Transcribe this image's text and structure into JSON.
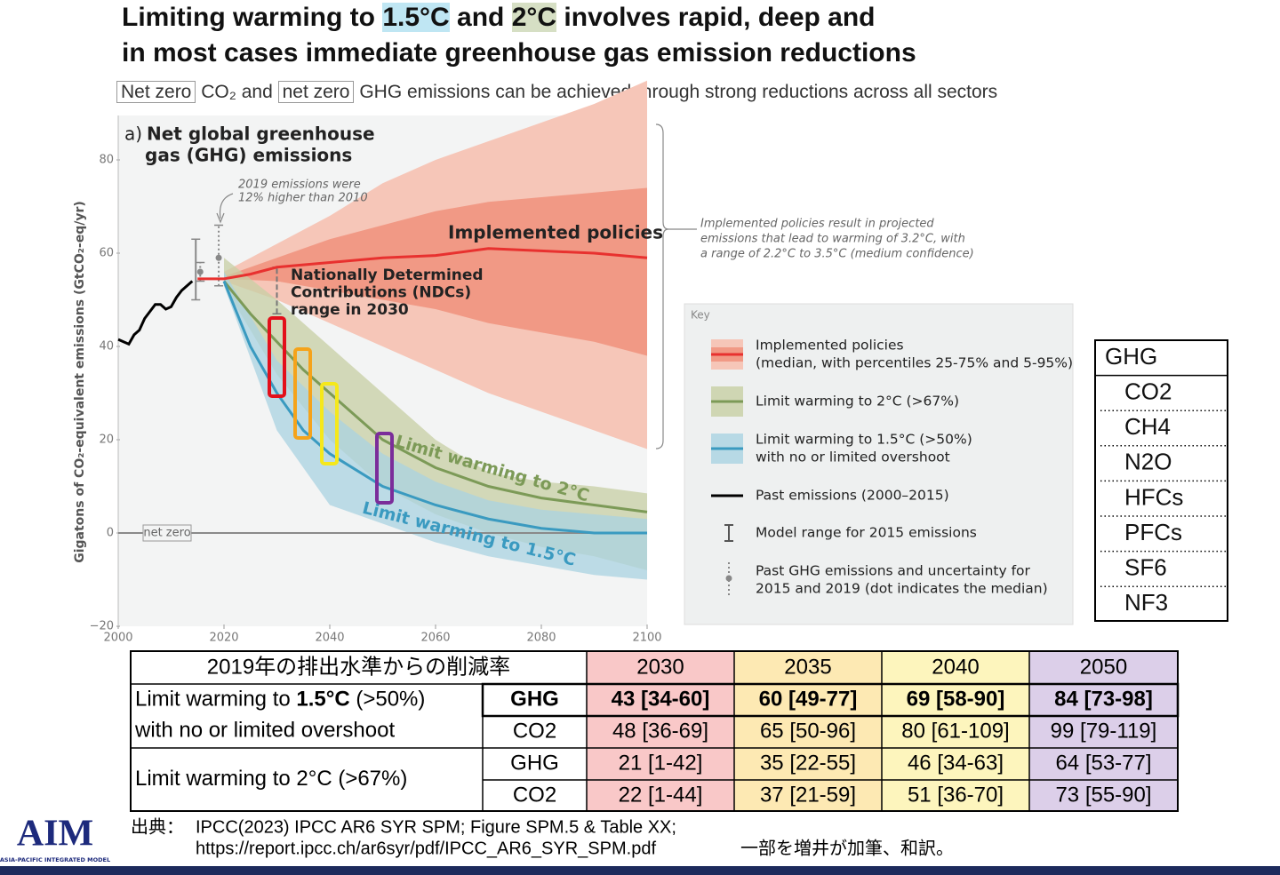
{
  "title": {
    "line1": [
      "Limiting warming to ",
      "1.5°C",
      " and ",
      "2°C",
      " involves rapid, deep and"
    ],
    "line2": "in most cases immediate greenhouse gas emission reductions"
  },
  "subtitle": [
    "Net zero",
    "CO₂ and",
    "net zero",
    "GHG emissions can be achieved through strong reductions across all sectors"
  ],
  "chart_data": {
    "type": "line",
    "panel_label": "a)",
    "panel_title": [
      "Net global greenhouse",
      "gas (GHG) emissions"
    ],
    "y_label": "Gigatons of CO₂-equivalent emissions (GtCO₂-eq/yr)",
    "xlim": [
      2000,
      2100
    ],
    "xticks": [
      2000,
      2020,
      2040,
      2060,
      2080,
      2100
    ],
    "ylim": [
      -20,
      80
    ],
    "yticks": [
      {
        "value": -20,
        "label": "−20"
      },
      0,
      20,
      40,
      60,
      80
    ],
    "grid": false,
    "series": [
      {
        "name": "Past emissions (2000–2015)",
        "color": "#000000",
        "x": [
          2000,
          2001,
          2002,
          2003,
          2004,
          2005,
          2006,
          2007,
          2008,
          2009,
          2010,
          2011,
          2012,
          2013,
          2014
        ],
        "values": [
          41.5,
          41,
          40.5,
          42.5,
          43.5,
          46,
          47.5,
          49,
          49,
          48,
          48.5,
          50.5,
          52,
          53,
          54
        ]
      },
      {
        "name": "Implemented policies",
        "color": "#e8312f",
        "x": [
          2015,
          2020,
          2025,
          2030,
          2040,
          2050,
          2060,
          2070,
          2080,
          2090,
          2100
        ],
        "values": [
          54.5,
          54.5,
          55.5,
          57,
          58,
          59,
          59.5,
          61,
          60.5,
          60,
          59
        ],
        "bands": [
          {
            "color": "#f6c6b8",
            "x": [
              2020,
              2030,
              2040,
              2050,
              2060,
              2070,
              2080,
              2090,
              2100
            ],
            "lower": [
              54,
              50,
              45,
              40,
              35,
              30,
              26,
              22,
              18
            ],
            "upper": [
              56,
              62,
              68,
              75,
              80,
              84,
              88,
              92,
              97
            ]
          },
          {
            "color": "#f19985",
            "x": [
              2020,
              2030,
              2040,
              2050,
              2060,
              2070,
              2080,
              2090,
              2100
            ],
            "lower": [
              54.5,
              54,
              52,
              50,
              48,
              45,
              43,
              41,
              38
            ],
            "upper": [
              55,
              59,
              63,
              66,
              69,
              71,
              72,
              73,
              74
            ]
          }
        ]
      },
      {
        "name": "Limit warming to 2°C",
        "color": "#7c9a57",
        "x": [
          2020,
          2025,
          2030,
          2035,
          2040,
          2050,
          2060,
          2070,
          2080,
          2090,
          2100
        ],
        "values": [
          54,
          47,
          41,
          35,
          30,
          20,
          14,
          10,
          7.5,
          6,
          4.5
        ],
        "bands": [
          {
            "color": "#c7cfa4",
            "x": [
              2020,
              2030,
              2040,
              2050,
              2060,
              2070,
              2080,
              2090,
              2100
            ],
            "lower": [
              53,
              34,
              20,
              10,
              4,
              0,
              -3,
              -5,
              -8
            ],
            "upper": [
              59,
              50,
              40,
              30,
              20,
              13,
              11,
              10,
              8.5
            ]
          }
        ]
      },
      {
        "name": "Limit warming to 1.5°C",
        "color": "#3a9ac0",
        "x": [
          2020,
          2025,
          2030,
          2035,
          2040,
          2050,
          2060,
          2070,
          2080,
          2090,
          2100
        ],
        "values": [
          54,
          40,
          30,
          22,
          17,
          10,
          6,
          3,
          1,
          0,
          0
        ],
        "bands": [
          {
            "color": "#a9d3e2",
            "x": [
              2020,
              2030,
              2040,
              2050,
              2060,
              2070,
              2080,
              2090,
              2100
            ],
            "lower": [
              53,
              22,
              6,
              2,
              -2,
              -5,
              -7,
              -9,
              -10
            ],
            "upper": [
              56,
              37,
              26,
              17,
              11,
              7,
              5,
              4,
              3
            ]
          }
        ]
      }
    ],
    "error_bars": [
      {
        "style": "model",
        "x": 2015,
        "low": 50,
        "high": 63
      },
      {
        "style": "past",
        "x": 2015,
        "low": 54,
        "high": 58,
        "median": 56
      },
      {
        "style": "past",
        "x": 2019,
        "low": 53,
        "high": 66,
        "median": 59
      },
      {
        "style": "ndc",
        "x": 2030,
        "low": 47,
        "high": 57
      }
    ],
    "annotations": {
      "net_zero": "net zero",
      "emissions_2019": [
        "2019 emissions were",
        "12% higher than 2010"
      ],
      "ndc": [
        "Nationally Determined",
        "Contributions (NDCs)",
        "range in 2030"
      ],
      "policies_note": [
        "Implemented policies result in projected",
        "emissions that lead to warming of 3.2°C, with",
        "a range of 2.2°C to 3.5°C (medium confidence)"
      ]
    },
    "key": {
      "title": "Key",
      "entries": [
        [
          "Implemented policies",
          "(median, with percentiles 25-75% and 5-95%)"
        ],
        [
          "Limit warming to 2°C (>67%)"
        ],
        [
          "Limit warming to 1.5°C (>50%)",
          "with no or limited overshoot"
        ],
        [
          "Past emissions (2000–2015)"
        ],
        [
          "Model range for 2015 emissions"
        ],
        [
          "Past GHG emissions and uncertainty for",
          "2015 and 2019 (dot indicates the median)"
        ]
      ]
    }
  },
  "gases": [
    "GHG",
    "CO2",
    "CH4",
    "N2O",
    "HFCs",
    "PFCs",
    "SF6",
    "NF3"
  ],
  "table": {
    "header": [
      "2019年の排出水準からの削減率",
      "2030",
      "2035",
      "2040",
      "2050"
    ],
    "column_colors": [
      "#f9c8c8",
      "#fde9b3",
      "#fdf5bd",
      "#dccfe9"
    ],
    "groups": [
      {
        "label_lines": [
          [
            "Limit warming to ",
            "1.5°C",
            " (>50%)"
          ],
          [
            "with no or limited overshoot"
          ]
        ],
        "rows": [
          {
            "gas": "GHG",
            "bold": true,
            "cells": [
              "43 [34-60]",
              "60 [49-77]",
              "69 [58-90]",
              "84 [73-98]"
            ]
          },
          {
            "gas": "CO2",
            "bold": false,
            "cells": [
              "48 [36-69]",
              "65 [50-96]",
              "80 [61-109]",
              "99 [79-119]"
            ]
          }
        ]
      },
      {
        "label_lines": [
          [
            "Limit warming to 2°C (>67%)"
          ]
        ],
        "rows": [
          {
            "gas": "GHG",
            "bold": false,
            "cells": [
              "21 [1-42]",
              "35 [22-55]",
              "46 [34-63]",
              "64 [53-77]"
            ]
          },
          {
            "gas": "CO2",
            "bold": false,
            "cells": [
              "22 [1-44]",
              "37 [21-59]",
              "51 [36-70]",
              "73 [55-90]"
            ]
          }
        ]
      }
    ]
  },
  "source": {
    "label": "出典：",
    "line1": "IPCC(2023) IPCC AR6 SYR SPM; Figure SPM.5 & Table XX;",
    "line2": "https://report.ipcc.ch/ar6syr/pdf/IPCC_AR6_SYR_SPM.pdf",
    "note": "一部を増井が加筆、和訳。"
  },
  "logo": {
    "name": "AIM",
    "subtitle": "ASIA-PACIFIC INTEGRATED MODEL"
  }
}
